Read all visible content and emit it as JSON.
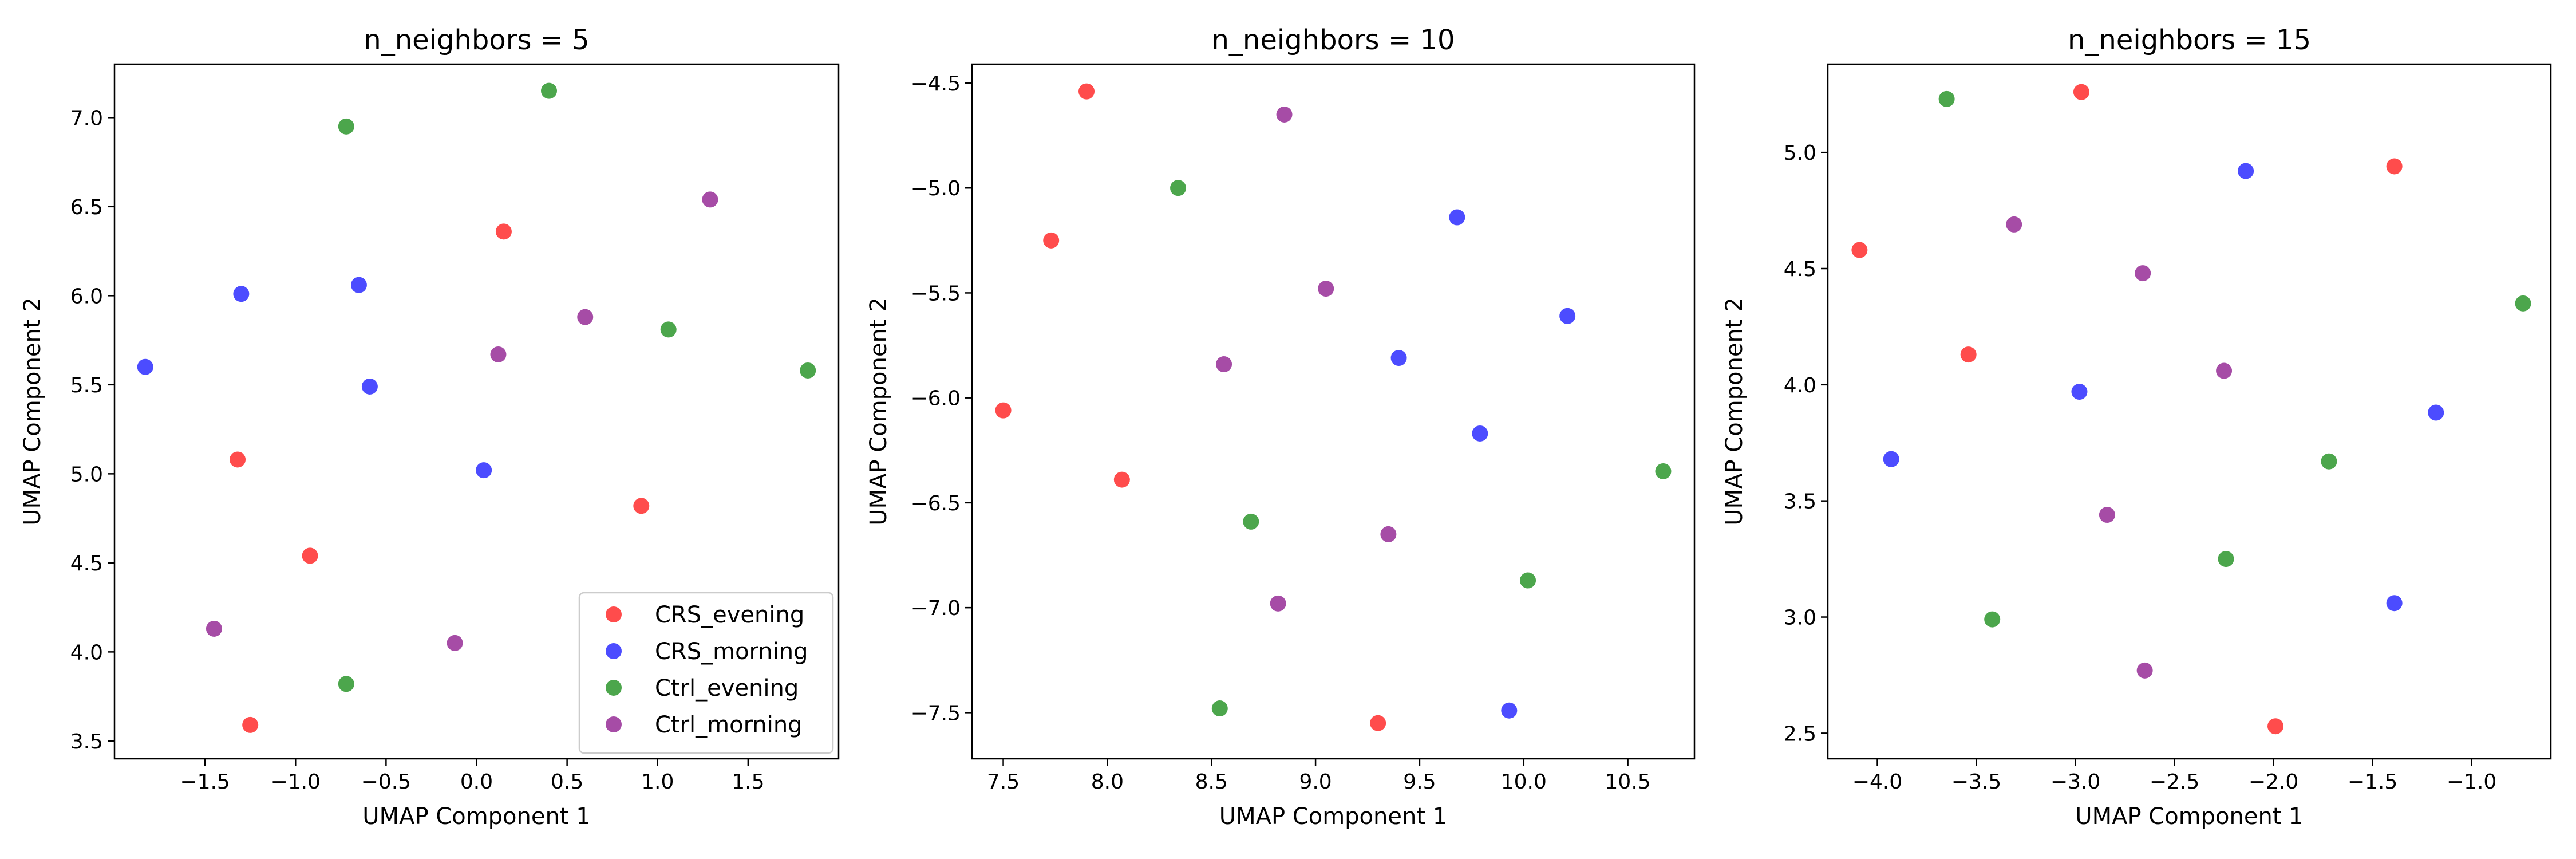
{
  "series_styles": [
    {
      "name": "CRS_evening",
      "color": "#ff0000"
    },
    {
      "name": "CRS_morning",
      "color": "#0000ff"
    },
    {
      "name": "Ctrl_evening",
      "color": "#008000"
    },
    {
      "name": "Ctrl_morning",
      "color": "#800080"
    }
  ],
  "chart_data": [
    {
      "type": "scatter",
      "title": "n_neighbors = 5",
      "xlabel": "UMAP Component 1",
      "ylabel": "UMAP Component 2",
      "xlim": [
        -2.0,
        2.0
      ],
      "ylim": [
        3.4,
        7.3
      ],
      "xticks": [
        -1.5,
        -1.0,
        -0.5,
        0.0,
        0.5,
        1.0,
        1.5
      ],
      "xtick_labels": [
        "−1.5",
        "−1.0",
        "−0.5",
        "0.0",
        "0.5",
        "1.0",
        "1.5"
      ],
      "yticks": [
        3.5,
        4.0,
        4.5,
        5.0,
        5.5,
        6.0,
        6.5,
        7.0
      ],
      "ytick_labels": [
        "3.5",
        "4.0",
        "4.5",
        "5.0",
        "5.5",
        "6.0",
        "6.5",
        "7.0"
      ],
      "legend": "lower-right",
      "grid": false,
      "series": [
        {
          "name": "CRS_evening",
          "points": [
            [
              0.15,
              6.36
            ],
            [
              -1.32,
              5.08
            ],
            [
              0.91,
              4.82
            ],
            [
              -0.92,
              4.54
            ],
            [
              -1.25,
              3.59
            ]
          ]
        },
        {
          "name": "CRS_morning",
          "points": [
            [
              -1.83,
              5.6
            ],
            [
              -1.3,
              6.01
            ],
            [
              -0.65,
              6.06
            ],
            [
              -0.59,
              5.49
            ],
            [
              0.04,
              5.02
            ]
          ]
        },
        {
          "name": "Ctrl_evening",
          "points": [
            [
              -0.72,
              6.95
            ],
            [
              0.4,
              7.15
            ],
            [
              1.06,
              5.81
            ],
            [
              1.83,
              5.58
            ],
            [
              -0.72,
              3.82
            ]
          ]
        },
        {
          "name": "Ctrl_morning",
          "points": [
            [
              1.29,
              6.54
            ],
            [
              0.6,
              5.88
            ],
            [
              0.12,
              5.67
            ],
            [
              -1.45,
              4.13
            ],
            [
              -0.12,
              4.05
            ]
          ]
        }
      ]
    },
    {
      "type": "scatter",
      "title": "n_neighbors = 10",
      "xlabel": "UMAP Component 1",
      "ylabel": "UMAP Component 2",
      "xlim": [
        7.35,
        10.82
      ],
      "ylim": [
        -7.72,
        -4.41
      ],
      "xticks": [
        7.5,
        8.0,
        8.5,
        9.0,
        9.5,
        10.0,
        10.5
      ],
      "xtick_labels": [
        "7.5",
        "8.0",
        "8.5",
        "9.0",
        "9.5",
        "10.0",
        "10.5"
      ],
      "yticks": [
        -7.5,
        -7.0,
        -6.5,
        -6.0,
        -5.5,
        -5.0,
        -4.5
      ],
      "ytick_labels": [
        "−7.5",
        "−7.0",
        "−6.5",
        "−6.0",
        "−5.5",
        "−5.0",
        "−4.5"
      ],
      "grid": false,
      "series": [
        {
          "name": "CRS_evening",
          "points": [
            [
              7.9,
              -4.54
            ],
            [
              7.73,
              -5.25
            ],
            [
              7.5,
              -6.06
            ],
            [
              8.07,
              -6.39
            ],
            [
              9.3,
              -7.55
            ]
          ]
        },
        {
          "name": "CRS_morning",
          "points": [
            [
              9.68,
              -5.14
            ],
            [
              10.21,
              -5.61
            ],
            [
              9.4,
              -5.81
            ],
            [
              9.79,
              -6.17
            ],
            [
              9.93,
              -7.49
            ]
          ]
        },
        {
          "name": "Ctrl_evening",
          "points": [
            [
              8.34,
              -5.0
            ],
            [
              8.69,
              -6.59
            ],
            [
              10.67,
              -6.35
            ],
            [
              10.02,
              -6.87
            ],
            [
              8.54,
              -7.48
            ]
          ]
        },
        {
          "name": "Ctrl_morning",
          "points": [
            [
              8.85,
              -4.65
            ],
            [
              9.05,
              -5.48
            ],
            [
              8.56,
              -5.84
            ],
            [
              9.35,
              -6.65
            ],
            [
              8.82,
              -6.98
            ]
          ]
        }
      ]
    },
    {
      "type": "scatter",
      "title": "n_neighbors = 15",
      "xlabel": "UMAP Component 1",
      "ylabel": "UMAP Component 2",
      "xlim": [
        -4.25,
        -0.6
      ],
      "ylim": [
        2.39,
        5.38
      ],
      "xticks": [
        -4.0,
        -3.5,
        -3.0,
        -2.5,
        -2.0,
        -1.5,
        -1.0
      ],
      "xtick_labels": [
        "−4.0",
        "−3.5",
        "−3.0",
        "−2.5",
        "−2.0",
        "−1.5",
        "−1.0"
      ],
      "yticks": [
        2.5,
        3.0,
        3.5,
        4.0,
        4.5,
        5.0
      ],
      "ytick_labels": [
        "2.5",
        "3.0",
        "3.5",
        "4.0",
        "4.5",
        "5.0"
      ],
      "grid": false,
      "series": [
        {
          "name": "CRS_evening",
          "points": [
            [
              -2.97,
              5.26
            ],
            [
              -1.39,
              4.94
            ],
            [
              -4.09,
              4.58
            ],
            [
              -3.54,
              4.13
            ],
            [
              -1.99,
              2.53
            ]
          ]
        },
        {
          "name": "CRS_morning",
          "points": [
            [
              -2.14,
              4.92
            ],
            [
              -2.98,
              3.97
            ],
            [
              -3.93,
              3.68
            ],
            [
              -1.18,
              3.88
            ],
            [
              -1.39,
              3.06
            ]
          ]
        },
        {
          "name": "Ctrl_evening",
          "points": [
            [
              -3.65,
              5.23
            ],
            [
              -0.74,
              4.35
            ],
            [
              -1.72,
              3.67
            ],
            [
              -2.24,
              3.25
            ],
            [
              -3.42,
              2.99
            ]
          ]
        },
        {
          "name": "Ctrl_morning",
          "points": [
            [
              -3.31,
              4.69
            ],
            [
              -2.66,
              4.48
            ],
            [
              -2.25,
              4.06
            ],
            [
              -2.84,
              3.44
            ],
            [
              -2.65,
              2.77
            ]
          ]
        }
      ]
    }
  ]
}
